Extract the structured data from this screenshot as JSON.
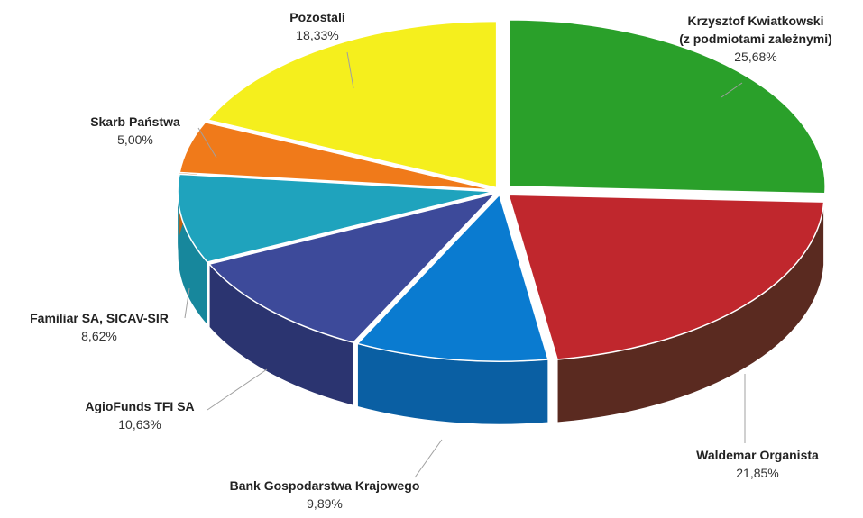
{
  "chart_data": {
    "type": "pie",
    "style": "3d-exploded",
    "title": "",
    "legend": "none",
    "series": [
      {
        "name_lines": [
          "Krzysztof Kwiatkowski",
          "(z podmiotami zależnymi)"
        ],
        "value": 25.68,
        "value_label": "25,68%",
        "color": "#2aa02a",
        "side_color": "#1d6f1d"
      },
      {
        "name_lines": [
          "Waldemar Organista"
        ],
        "value": 21.85,
        "value_label": "21,85%",
        "color": "#c0272d",
        "side_color": "#5a2a20"
      },
      {
        "name_lines": [
          "Bank Gospodarstwa Krajowego"
        ],
        "value": 9.89,
        "value_label": "9,89%",
        "color": "#0a7bd0",
        "side_color": "#0a5fa3"
      },
      {
        "name_lines": [
          "AgioFunds TFI SA"
        ],
        "value": 10.63,
        "value_label": "10,63%",
        "color": "#3d4a9a",
        "side_color": "#2b3470"
      },
      {
        "name_lines": [
          "Familiar SA, SICAV-SIR"
        ],
        "value": 8.62,
        "value_label": "8,62%",
        "color": "#1fa3bd",
        "side_color": "#17879c"
      },
      {
        "name_lines": [
          "Skarb Państwa"
        ],
        "value": 5.0,
        "value_label": "5,00%",
        "color": "#f07a1a",
        "side_color": "#c05f10"
      },
      {
        "name_lines": [
          "Pozostali"
        ],
        "value": 18.33,
        "value_label": "18,33%",
        "color": "#f5ef1d",
        "side_color": "#c9c20f"
      }
    ]
  }
}
